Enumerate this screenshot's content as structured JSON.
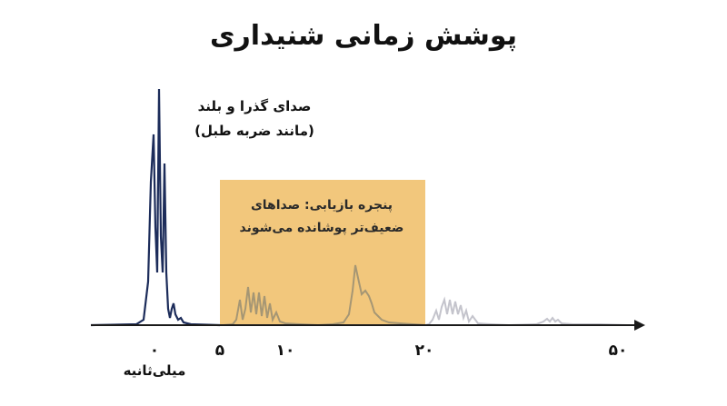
{
  "title": "پوشش زمانی شنیداری",
  "loud_sound_label": {
    "line1": "صدای گذرا و بلند",
    "line2": "(مانند ضربه طبل)"
  },
  "window_label": {
    "line1": "پنجره بازیابی: صداهای",
    "line2": "ضعیف‌تر پوشانده می‌شوند"
  },
  "axis": {
    "ticks": [
      "۰",
      "۵",
      "۱۰",
      "۲۰",
      "۵۰"
    ],
    "unit": "میلی‌ثانیه"
  },
  "colors": {
    "loud_wave": "#1c2c5a",
    "window_fill": "#f2c77c",
    "masked_wave": "#a59674",
    "faint_wave": "#c4c4cc",
    "axis": "#1a1a1a"
  }
}
